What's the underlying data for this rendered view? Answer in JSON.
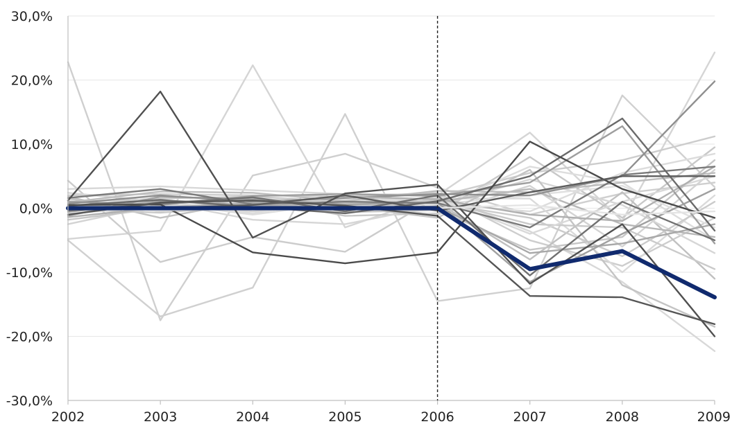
{
  "chart_data": {
    "type": "line",
    "title": "",
    "xlabel": "",
    "ylabel": "",
    "x": [
      "2002",
      "2003",
      "2004",
      "2005",
      "2006",
      "2007",
      "2008",
      "2009"
    ],
    "y_tick_labels": [
      "30,0%",
      "20,0%",
      "10,0%",
      "0,0%",
      "-10,0%",
      "-20,0%",
      "-30,0%"
    ],
    "y_ticks": [
      30,
      20,
      10,
      0,
      -10,
      -20,
      -30
    ],
    "ylim": [
      -30,
      30
    ],
    "grid": "horizontal",
    "legend": "none",
    "divider_at": "2006",
    "highlight_series": {
      "color": "#102a6e",
      "values": [
        0,
        0,
        0,
        0,
        0,
        -9.5,
        -6.7,
        -13.9
      ]
    },
    "series": [
      {
        "color": "#cfcfcf",
        "values": [
          22.8,
          -17.5,
          5.1,
          8.5,
          3.2,
          -1.0,
          2.3,
          4.0
        ]
      },
      {
        "color": "#d5d5d5",
        "values": [
          -4.8,
          -3.5,
          22.3,
          -3.0,
          2.0,
          11.8,
          -2.0,
          24.3
        ]
      },
      {
        "color": "#d0d0d0",
        "values": [
          -5.0,
          -16.9,
          -12.4,
          14.7,
          -14.5,
          -12.5,
          17.6,
          3.3
        ]
      },
      {
        "color": "#cccccc",
        "values": [
          4.3,
          -8.4,
          -4.5,
          -6.8,
          1.8,
          5.5,
          7.5,
          11.2
        ]
      },
      {
        "color": "#d8d8d8",
        "values": [
          3.0,
          3.4,
          2.8,
          2.2,
          2.1,
          -3.6,
          -11.5,
          -22.3
        ]
      },
      {
        "color": "#c8c8c8",
        "values": [
          -1.0,
          1.0,
          1.5,
          -1.2,
          -0.8,
          8.0,
          -1.5,
          9.5
        ]
      },
      {
        "color": "#dddddd",
        "values": [
          0.5,
          0.8,
          -1.0,
          0.9,
          0.2,
          6.5,
          4.0,
          -5.0
        ]
      },
      {
        "color": "#cdcdcd",
        "values": [
          2.0,
          2.2,
          2.0,
          1.8,
          2.4,
          -5.0,
          -9.0,
          -1.5
        ]
      },
      {
        "color": "#d3d3d3",
        "values": [
          -2.5,
          0.6,
          -0.5,
          0.5,
          -1.0,
          3.5,
          -6.0,
          6.0
        ]
      },
      {
        "color": "#c0c0c0",
        "values": [
          1.8,
          -1.5,
          1.2,
          -0.3,
          0.9,
          -8.0,
          2.5,
          -11.0
        ]
      },
      {
        "color": "#dadada",
        "values": [
          -0.5,
          0.3,
          0.9,
          1.3,
          1.5,
          1.5,
          -10.0,
          2.0
        ]
      },
      {
        "color": "#cacaca",
        "values": [
          0.8,
          1.5,
          1.8,
          1.0,
          1.2,
          -2.5,
          -3.0,
          -9.5
        ]
      },
      {
        "color": "#d6d6d6",
        "values": [
          2.4,
          1.0,
          -1.8,
          -2.5,
          0.4,
          4.5,
          0.5,
          -7.0
        ]
      },
      {
        "color": "#c6c6c6",
        "values": [
          -1.8,
          0.0,
          0.3,
          -0.6,
          -0.3,
          -6.5,
          -4.5,
          7.5
        ]
      },
      {
        "color": "#e0e0e0",
        "values": [
          1.2,
          0.9,
          1.1,
          0.7,
          0.6,
          2.0,
          3.5,
          -3.0
        ]
      },
      {
        "color": "#cbcbcb",
        "values": [
          -0.2,
          -0.7,
          0.4,
          0.2,
          0.8,
          -1.5,
          -7.5,
          1.0
        ]
      },
      {
        "color": "#b8b8b8",
        "values": [
          0.3,
          0.2,
          0.7,
          0.5,
          1.0,
          3.0,
          -2.5,
          -4.5
        ]
      },
      {
        "color": "#d9d9d9",
        "values": [
          -0.9,
          0.4,
          -0.2,
          0.8,
          1.7,
          -4.0,
          1.0,
          5.0
        ]
      },
      {
        "color": "#c4c4c4",
        "values": [
          1.5,
          -0.5,
          1.6,
          0.3,
          -1.5,
          6.0,
          -12.0,
          -18.5
        ]
      },
      {
        "color": "#dcdcdc",
        "values": [
          0.0,
          1.2,
          -0.8,
          1.5,
          0.7,
          -0.5,
          5.5,
          8.5
        ]
      },
      {
        "color": "#bdbdbd",
        "values": [
          0.9,
          2.6,
          2.4,
          1.1,
          2.7,
          2.5,
          4.0,
          5.5
        ]
      },
      {
        "color": "#a8a8a8",
        "values": [
          -0.6,
          1.1,
          0.5,
          0.0,
          0.3,
          -7.0,
          -5.5,
          -2.5
        ]
      },
      {
        "color": "#9e9e9e",
        "values": [
          1.0,
          0.5,
          1.9,
          2.2,
          1.9,
          4.0,
          12.8,
          -5.5
        ]
      },
      {
        "color": "#a0a0a0",
        "values": [
          -1.2,
          1.8,
          1.4,
          0.6,
          0.9,
          -11.5,
          -4.0,
          3.0
        ]
      },
      {
        "color": "#8f8f8f",
        "values": [
          0.7,
          2.0,
          1.0,
          1.6,
          2.2,
          2.0,
          5.0,
          19.8
        ]
      },
      {
        "color": "#b0b0b0",
        "values": [
          -1.4,
          0.1,
          0.8,
          1.8,
          1.4,
          -1.0,
          -2.0,
          6.5
        ]
      },
      {
        "color": "#7a7a7a",
        "values": [
          1.6,
          3.0,
          0.6,
          1.0,
          0.8,
          -3.0,
          5.2,
          6.5
        ]
      },
      {
        "color": "#707070",
        "values": [
          -0.4,
          0.7,
          1.7,
          -0.5,
          2.0,
          -10.5,
          1.0,
          -5.0
        ]
      },
      {
        "color": "#6a6a6a",
        "values": [
          0.4,
          1.3,
          0.2,
          -0.8,
          1.1,
          5.0,
          14.0,
          -3.5
        ]
      },
      {
        "color": "#505050",
        "values": [
          1.2,
          18.2,
          -4.6,
          2.3,
          3.7,
          -11.8,
          -2.5,
          -20.0
        ]
      },
      {
        "color": "#4a4a4a",
        "values": [
          0.5,
          0.6,
          -6.9,
          -8.6,
          -6.9,
          10.4,
          3.0,
          -1.5
        ]
      },
      {
        "color": "#555555",
        "values": [
          -1.0,
          0.9,
          1.2,
          0.4,
          -1.2,
          -13.7,
          -13.9,
          -18.1
        ]
      },
      {
        "color": "#5c5c5c",
        "values": [
          0.2,
          0.0,
          0.5,
          2.0,
          -0.4,
          2.5,
          5.0,
          5.0
        ]
      },
      {
        "color": "#e4e4e4",
        "values": [
          0.1,
          -0.4,
          0.2,
          0.1,
          0.0,
          0.5,
          -1.0,
          -0.5
        ]
      }
    ]
  }
}
